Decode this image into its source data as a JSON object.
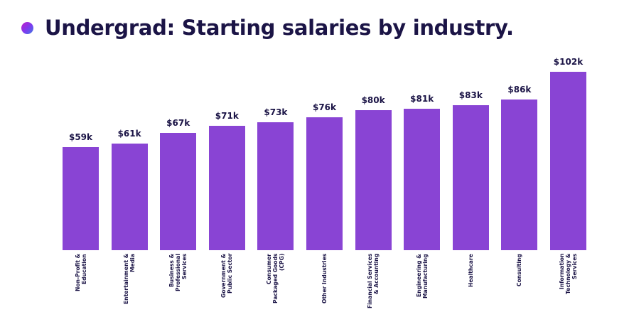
{
  "title": "Undergrad: Starting salaries by industry.",
  "colors": {
    "bar": "#8944d4",
    "text": "#1b1446"
  },
  "chart_data": {
    "type": "bar",
    "title": "Undergrad: Starting salaries by industry.",
    "xlabel": "",
    "ylabel": "",
    "ylim": [
      0,
      102
    ],
    "grid": false,
    "categories": [
      "Non-Profit &\nEducation",
      "Entertainment &\nMedia",
      "Business &\nProfessional\nServices",
      "Government &\nPublic Sector",
      "Consumer\nPackaged Goods\n(CPG)",
      "Other Industries",
      "Financial Services\n& Accounting",
      "Engineering &\nManufacturing",
      "Healthcare",
      "Consulting",
      "Information\nTechnology &\nServices"
    ],
    "values": [
      59,
      61,
      67,
      71,
      73,
      76,
      80,
      81,
      83,
      86,
      102
    ],
    "labels": [
      "$59k",
      "$61k",
      "$67k",
      "$71k",
      "$73k",
      "$76k",
      "$80k",
      "$81k",
      "$83k",
      "$86k",
      "$102k"
    ]
  }
}
